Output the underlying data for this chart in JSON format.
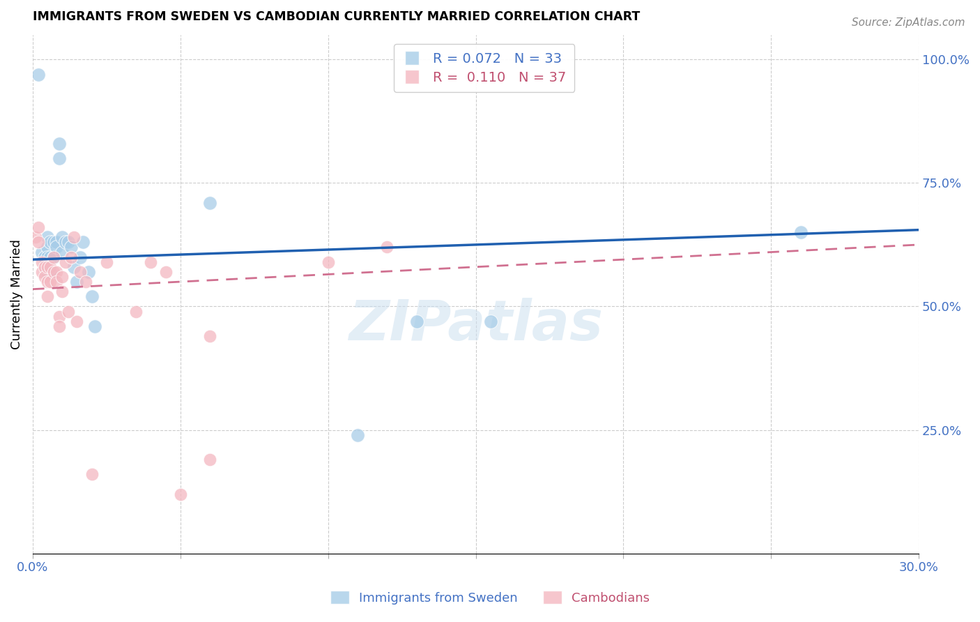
{
  "title": "IMMIGRANTS FROM SWEDEN VS CAMBODIAN CURRENTLY MARRIED CORRELATION CHART",
  "source": "Source: ZipAtlas.com",
  "ylabel": "Currently Married",
  "xlim": [
    0.0,
    0.3
  ],
  "ylim": [
    0.0,
    1.05
  ],
  "xticks": [
    0.0,
    0.05,
    0.1,
    0.15,
    0.2,
    0.25,
    0.3
  ],
  "xticklabels": [
    "0.0%",
    "",
    "",
    "",
    "",
    "",
    "30.0%"
  ],
  "yticks_right": [
    0.0,
    0.25,
    0.5,
    0.75,
    1.0
  ],
  "yticklabels_right": [
    "",
    "25.0%",
    "50.0%",
    "75.0%",
    "100.0%"
  ],
  "blue_label": "Immigrants from Sweden",
  "pink_label": "Cambodians",
  "blue_R": 0.072,
  "blue_N": 33,
  "pink_R": 0.11,
  "pink_N": 37,
  "blue_color": "#a8cde8",
  "pink_color": "#f4b8c1",
  "trend_blue_color": "#2060b0",
  "trend_pink_color": "#d07090",
  "watermark": "ZIPatlas",
  "blue_x": [
    0.002,
    0.003,
    0.004,
    0.005,
    0.005,
    0.005,
    0.005,
    0.006,
    0.006,
    0.006,
    0.007,
    0.007,
    0.008,
    0.008,
    0.009,
    0.009,
    0.01,
    0.01,
    0.011,
    0.012,
    0.013,
    0.014,
    0.015,
    0.016,
    0.017,
    0.019,
    0.02,
    0.021,
    0.06,
    0.11,
    0.13,
    0.155,
    0.26
  ],
  "blue_y": [
    0.97,
    0.61,
    0.6,
    0.64,
    0.62,
    0.6,
    0.57,
    0.63,
    0.6,
    0.57,
    0.63,
    0.6,
    0.63,
    0.62,
    0.83,
    0.8,
    0.64,
    0.61,
    0.63,
    0.63,
    0.62,
    0.58,
    0.55,
    0.6,
    0.63,
    0.57,
    0.52,
    0.46,
    0.71,
    0.24,
    0.47,
    0.47,
    0.65
  ],
  "pink_x": [
    0.001,
    0.002,
    0.002,
    0.003,
    0.003,
    0.004,
    0.004,
    0.005,
    0.005,
    0.005,
    0.006,
    0.006,
    0.007,
    0.007,
    0.008,
    0.008,
    0.009,
    0.009,
    0.01,
    0.01,
    0.011,
    0.012,
    0.013,
    0.014,
    0.015,
    0.016,
    0.018,
    0.02,
    0.025,
    0.035,
    0.04,
    0.045,
    0.05,
    0.06,
    0.06,
    0.1,
    0.12
  ],
  "pink_y": [
    0.64,
    0.66,
    0.63,
    0.59,
    0.57,
    0.58,
    0.56,
    0.58,
    0.55,
    0.52,
    0.58,
    0.55,
    0.6,
    0.57,
    0.57,
    0.55,
    0.48,
    0.46,
    0.56,
    0.53,
    0.59,
    0.49,
    0.6,
    0.64,
    0.47,
    0.57,
    0.55,
    0.16,
    0.59,
    0.49,
    0.59,
    0.57,
    0.12,
    0.44,
    0.19,
    0.59,
    0.62
  ],
  "blue_trend_x0": 0.0,
  "blue_trend_x1": 0.3,
  "blue_trend_y0": 0.595,
  "blue_trend_y1": 0.655,
  "pink_trend_x0": 0.0,
  "pink_trend_x1": 0.3,
  "pink_trend_y0": 0.535,
  "pink_trend_y1": 0.625
}
